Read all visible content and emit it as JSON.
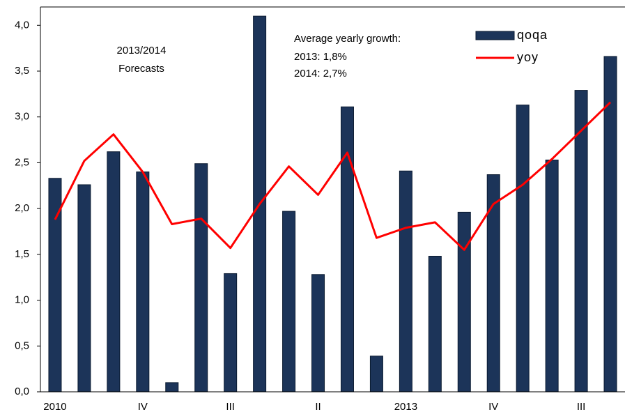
{
  "chart_data": {
    "type": "bar-line",
    "annotations": [
      "2013/2014",
      "Forecasts",
      "Average yearly growth:",
      "2013: 1,8%",
      "2014: 2,7%"
    ],
    "categories": [
      "2010",
      null,
      null,
      "IV",
      null,
      null,
      "III",
      null,
      null,
      "II",
      null,
      null,
      "2013",
      null,
      null,
      "IV",
      null,
      null,
      "III",
      null
    ],
    "series": [
      {
        "name": "qoqa",
        "type": "bar",
        "color": "#1c3459",
        "values": [
          2.33,
          2.26,
          2.62,
          2.4,
          0.1,
          2.49,
          1.29,
          4.1,
          1.97,
          1.28,
          3.11,
          0.39,
          2.41,
          1.48,
          1.96,
          2.37,
          3.13,
          2.53,
          3.29,
          3.66
        ]
      },
      {
        "name": "yoy",
        "type": "line",
        "color": "#ff0000",
        "values": [
          1.88,
          2.52,
          2.81,
          2.4,
          1.83,
          1.89,
          1.57,
          2.05,
          2.46,
          2.15,
          2.61,
          1.68,
          1.79,
          1.85,
          1.55,
          2.05,
          2.26,
          2.54,
          2.85,
          3.16
        ]
      }
    ],
    "ylim": [
      0,
      4.2
    ],
    "yticks": [
      {
        "value": 0,
        "label": "0,0"
      },
      {
        "value": 0.5,
        "label": "0,5"
      },
      {
        "value": 1,
        "label": "1,0"
      },
      {
        "value": 1.5,
        "label": "1,5"
      },
      {
        "value": 2,
        "label": "2,0"
      },
      {
        "value": 2.5,
        "label": "2,5"
      },
      {
        "value": 3,
        "label": "3,0"
      },
      {
        "value": 3.5,
        "label": "3,5"
      },
      {
        "value": 4,
        "label": "4,0"
      }
    ],
    "legend": "top-right"
  }
}
